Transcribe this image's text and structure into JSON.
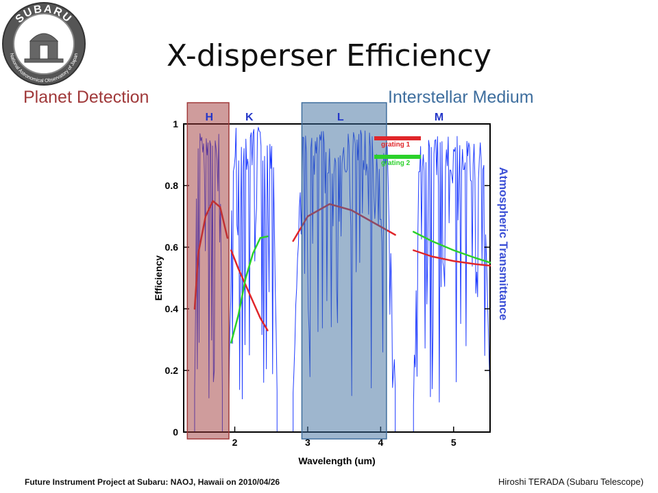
{
  "logo": {
    "top_text": "SUBARU",
    "ring_text": "National Astronomical Observatory of Japan",
    "icon": "subaru-telescope-seal"
  },
  "slide": {
    "title": "X-disperser Efficiency",
    "planet_label": "Planet Detection",
    "ism_label": "Interstellar Medium"
  },
  "footer": {
    "left": "Future Instrument Project at Subaru: NAOJ, Hawaii on 2010/04/26",
    "right": "Hiroshi TERADA (Subaru Telescope)"
  },
  "colors": {
    "planet_highlight": "#a0393a",
    "ism_highlight": "#3e6e9e",
    "transmittance": "#1f3cff",
    "grating1": "#e0262a",
    "grating2": "#2bd12b"
  },
  "chart_data": {
    "type": "line",
    "xlabel": "Wavelength (um)",
    "ylabel": "Efficiency",
    "y2label": "Atmospheric Transmittance",
    "xlim": [
      1.3,
      5.5
    ],
    "ylim": [
      0,
      1
    ],
    "xticks": [
      "2",
      "3",
      "4",
      "5"
    ],
    "xtick_values": [
      2,
      3,
      4,
      5
    ],
    "yticks": [
      "0",
      "0.2",
      "0.4",
      "0.6",
      "0.8",
      "1"
    ],
    "ytick_values": [
      0,
      0.2,
      0.4,
      0.6,
      0.8,
      1.0
    ],
    "bands": [
      {
        "name": "H",
        "center": 1.65
      },
      {
        "name": "K",
        "center": 2.2
      },
      {
        "name": "L",
        "center": 3.45
      },
      {
        "name": "M",
        "center": 4.8
      }
    ],
    "legend": [
      {
        "name": "grating 1",
        "color": "#e0262a"
      },
      {
        "name": "grating 2",
        "color": "#2bd12b"
      }
    ],
    "series": [
      {
        "name": "grating 1",
        "color": "#e0262a",
        "segments": [
          [
            [
              1.45,
              0.4
            ],
            [
              1.5,
              0.58
            ],
            [
              1.6,
              0.7
            ],
            [
              1.7,
              0.75
            ],
            [
              1.8,
              0.73
            ],
            [
              1.9,
              0.63
            ]
          ],
          [
            [
              1.95,
              0.59
            ],
            [
              2.05,
              0.53
            ],
            [
              2.2,
              0.45
            ],
            [
              2.35,
              0.37
            ],
            [
              2.45,
              0.33
            ]
          ],
          [
            [
              2.8,
              0.62
            ],
            [
              3.0,
              0.7
            ],
            [
              3.3,
              0.74
            ],
            [
              3.6,
              0.72
            ],
            [
              3.9,
              0.68
            ],
            [
              4.2,
              0.64
            ]
          ],
          [
            [
              4.45,
              0.59
            ],
            [
              4.7,
              0.57
            ],
            [
              5.0,
              0.555
            ],
            [
              5.3,
              0.545
            ],
            [
              5.5,
              0.54
            ]
          ]
        ]
      },
      {
        "name": "grating 2",
        "color": "#2bd12b",
        "segments": [
          [
            [
              1.95,
              0.29
            ],
            [
              2.05,
              0.38
            ],
            [
              2.15,
              0.5
            ],
            [
              2.25,
              0.58
            ],
            [
              2.35,
              0.63
            ],
            [
              2.45,
              0.635
            ]
          ],
          [
            [
              4.45,
              0.65
            ],
            [
              4.7,
              0.62
            ],
            [
              5.0,
              0.59
            ],
            [
              5.3,
              0.565
            ],
            [
              5.5,
              0.55
            ]
          ]
        ]
      },
      {
        "name": "Atmospheric Transmittance",
        "color": "#1f3cff",
        "windows": [
          {
            "start": 1.45,
            "end": 1.83,
            "peak": 0.98
          },
          {
            "start": 1.92,
            "end": 2.58,
            "peak": 0.99
          },
          {
            "start": 2.8,
            "end": 4.2,
            "peak": 0.98
          },
          {
            "start": 4.45,
            "end": 5.5,
            "peak": 0.96
          }
        ]
      }
    ],
    "highlights": [
      {
        "name": "Planet Detection",
        "xrange": [
          1.35,
          1.92
        ],
        "color": "#a0393a"
      },
      {
        "name": "Interstellar Medium",
        "xrange": [
          2.92,
          4.08
        ],
        "color": "#3e6e9e"
      }
    ]
  }
}
